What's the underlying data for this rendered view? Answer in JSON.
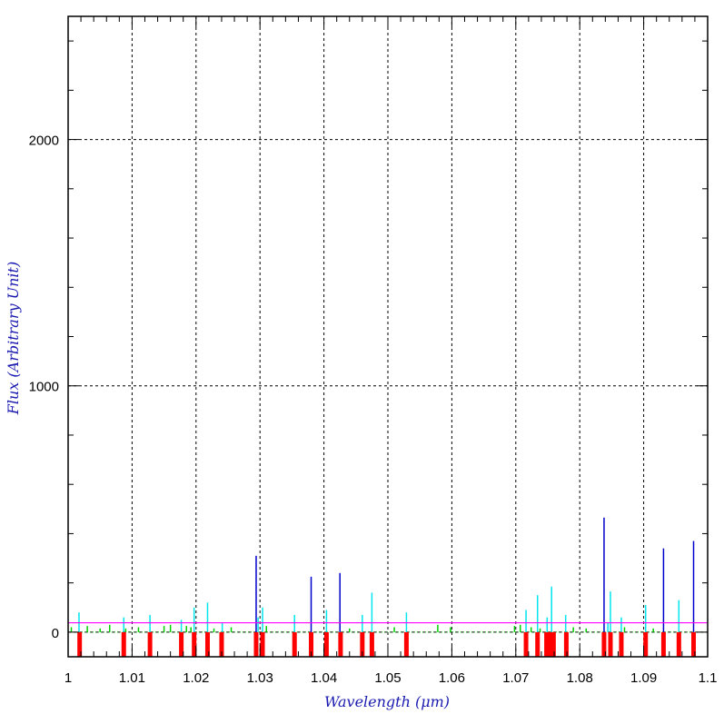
{
  "chart_data": {
    "type": "line",
    "xlabel": "Wavelength (μm)",
    "ylabel": "Flux (Arbitrary Unit)",
    "xlim": [
      1.0,
      1.1
    ],
    "ylim": [
      -100,
      2500
    ],
    "x_ticks": [
      1,
      1.01,
      1.02,
      1.03,
      1.04,
      1.05,
      1.06,
      1.07,
      1.08,
      1.09,
      1.1
    ],
    "x_tick_labels": [
      "1",
      "1.01",
      "1.02",
      "1.03",
      "1.04",
      "1.05",
      "1.06",
      "1.07",
      "1.08",
      "1.09",
      "1.1"
    ],
    "y_ticks": [
      0,
      1000,
      2000
    ],
    "y_tick_labels": [
      "0",
      "1000",
      "2000"
    ],
    "grid": true,
    "colors": {
      "axis_title": "#1a1ab0",
      "continuum": "#ff00ff",
      "zero_line": "#00b000",
      "line_markers": "#ff0000",
      "series_blue": "#0000cc",
      "series_cyan": "#00e5ee",
      "series_green": "#00cc00"
    },
    "continuum_level": 38,
    "series": [
      {
        "color": "blue",
        "x": [
          1.0294,
          1.038,
          1.0425,
          1.0838,
          1.0931,
          1.0978
        ],
        "values": [
          310,
          225,
          240,
          465,
          340,
          370
        ]
      },
      {
        "color": "cyan",
        "x": [
          1.0017,
          1.0087,
          1.0128,
          1.0177,
          1.0197,
          1.0218,
          1.0241,
          1.0297,
          1.0304,
          1.0354,
          1.0404,
          1.046,
          1.0475,
          1.0529,
          1.0716,
          1.0734,
          1.0749,
          1.0756,
          1.0778,
          1.0844,
          1.0848,
          1.0865,
          1.0903,
          1.0955
        ],
        "values": [
          80,
          60,
          70,
          50,
          100,
          120,
          40,
          60,
          100,
          70,
          90,
          70,
          160,
          80,
          90,
          150,
          60,
          185,
          70,
          40,
          165,
          60,
          110,
          130
        ]
      },
      {
        "color": "green",
        "x": [
          1.0005,
          1.003,
          1.005,
          1.0065,
          1.009,
          1.011,
          1.015,
          1.016,
          1.0185,
          1.0192,
          1.0228,
          1.0255,
          1.031,
          1.044,
          1.051,
          1.0578,
          1.0598,
          1.0698,
          1.0707,
          1.0724,
          1.0738,
          1.079,
          1.081,
          1.087,
          1.0915
        ],
        "values": [
          20,
          25,
          15,
          30,
          15,
          20,
          25,
          30,
          25,
          20,
          15,
          20,
          25,
          15,
          20,
          30,
          20,
          25,
          30,
          20,
          15,
          20,
          15,
          20,
          15
        ]
      }
    ],
    "line_markers_x": [
      1.0018,
      1.0087,
      1.0128,
      1.0177,
      1.0197,
      1.0218,
      1.024,
      1.0294,
      1.0304,
      1.0354,
      1.038,
      1.0404,
      1.0426,
      1.046,
      1.0475,
      1.0529,
      1.0716,
      1.0734,
      1.0748,
      1.0754,
      1.0759,
      1.0779,
      1.0838,
      1.0848,
      1.0865,
      1.0903,
      1.0931,
      1.0955,
      1.0978
    ]
  }
}
